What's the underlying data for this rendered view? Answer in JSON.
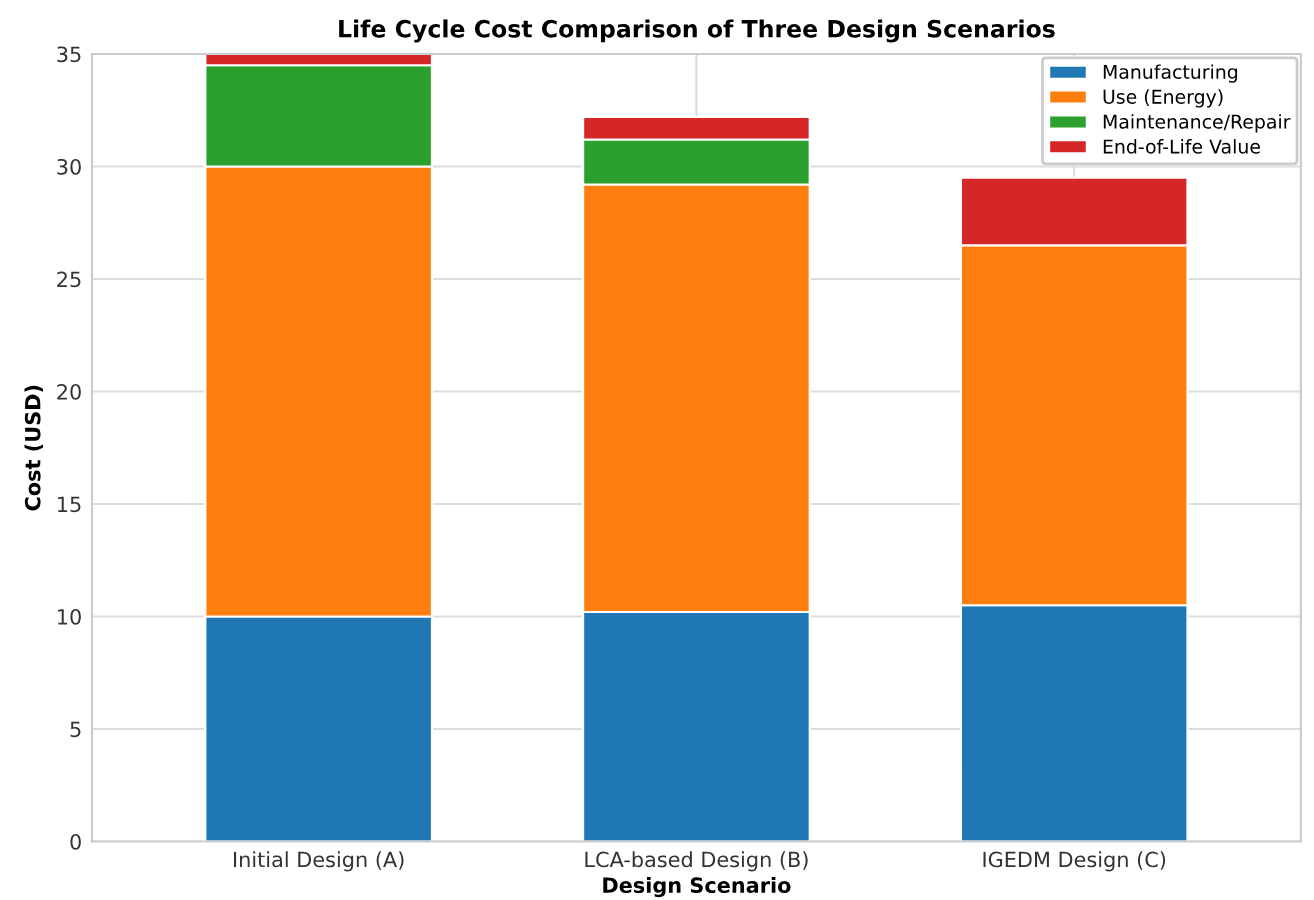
{
  "chart_data": {
    "type": "bar",
    "stacked": true,
    "title": "Life Cycle Cost Comparison of Three Design Scenarios",
    "xlabel": "Design Scenario",
    "ylabel": "Cost (USD)",
    "categories": [
      "Initial Design (A)",
      "LCA-based Design (B)",
      "IGEDM Design (C)"
    ],
    "series": [
      {
        "name": "Manufacturing",
        "color": "#1f77b4",
        "values": [
          10.0,
          10.2,
          10.5
        ]
      },
      {
        "name": "Use (Energy)",
        "color": "#ff7f0e",
        "values": [
          20.0,
          19.0,
          16.0
        ]
      },
      {
        "name": "Maintenance/Repair",
        "color": "#2ca02c",
        "values": [
          4.5,
          2.0,
          0
        ]
      },
      {
        "name": "End-of-Life Value",
        "color": "#d62728",
        "values": [
          0.5,
          1.0,
          3.0
        ]
      }
    ],
    "ylim": [
      0,
      35
    ],
    "yticks": [
      0,
      5,
      10,
      15,
      20,
      25,
      30,
      35
    ],
    "grid": true,
    "legend": "top right"
  }
}
